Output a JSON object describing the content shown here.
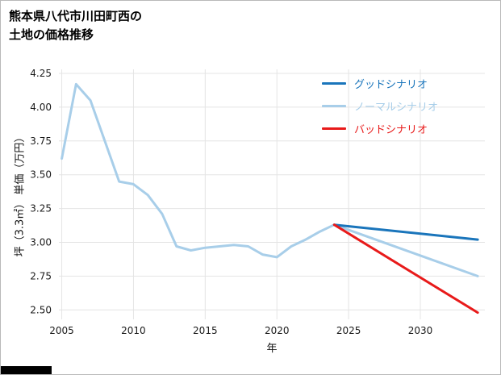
{
  "chart_data": {
    "type": "line",
    "title": "熊本県八代市川田町西の\n土地の価格推移",
    "xlabel": "年",
    "ylabel": "坪（3.3㎡） 単価（万円）",
    "xlim": [
      2004.8,
      2034.5
    ],
    "ylim": [
      2.43,
      4.28
    ],
    "grid": true,
    "grid_color": "#e4e4e4",
    "legend_position": "top-right",
    "xticks": [
      {
        "value": 2005,
        "label": "2005"
      },
      {
        "value": 2010,
        "label": "2010"
      },
      {
        "value": 2015,
        "label": "2015"
      },
      {
        "value": 2020,
        "label": "2020"
      },
      {
        "value": 2025,
        "label": "2025"
      },
      {
        "value": 2030,
        "label": "2030"
      }
    ],
    "yticks": [
      {
        "value": 2.5,
        "label": "2.50"
      },
      {
        "value": 2.75,
        "label": "2.75"
      },
      {
        "value": 3.0,
        "label": "3.00"
      },
      {
        "value": 3.25,
        "label": "3.25"
      },
      {
        "value": 3.5,
        "label": "3.50"
      },
      {
        "value": 3.75,
        "label": "3.75"
      },
      {
        "value": 4.0,
        "label": "4.00"
      },
      {
        "value": 4.25,
        "label": "4.25"
      }
    ],
    "draw_order": [
      1,
      0,
      2
    ],
    "series": [
      {
        "name": "グッドシナリオ",
        "color": "#1a75bb",
        "width": 3,
        "x": [
          2024,
          2034
        ],
        "y": [
          3.13,
          3.02
        ]
      },
      {
        "name": "ノーマルシナリオ",
        "color": "#a8cee9",
        "width": 3,
        "x": [
          2005,
          2006,
          2007,
          2008,
          2009,
          2010,
          2011,
          2012,
          2013,
          2014,
          2015,
          2016,
          2017,
          2018,
          2019,
          2020,
          2021,
          2022,
          2023,
          2024,
          2034
        ],
        "y": [
          3.62,
          4.17,
          4.05,
          3.75,
          3.45,
          3.43,
          3.35,
          3.21,
          2.97,
          2.94,
          2.96,
          2.97,
          2.98,
          2.97,
          2.91,
          2.89,
          2.97,
          3.02,
          3.08,
          3.13,
          2.75
        ]
      },
      {
        "name": "バッドシナリオ",
        "color": "#e81a1a",
        "width": 3,
        "x": [
          2024,
          2034
        ],
        "y": [
          3.13,
          2.48
        ]
      }
    ]
  }
}
